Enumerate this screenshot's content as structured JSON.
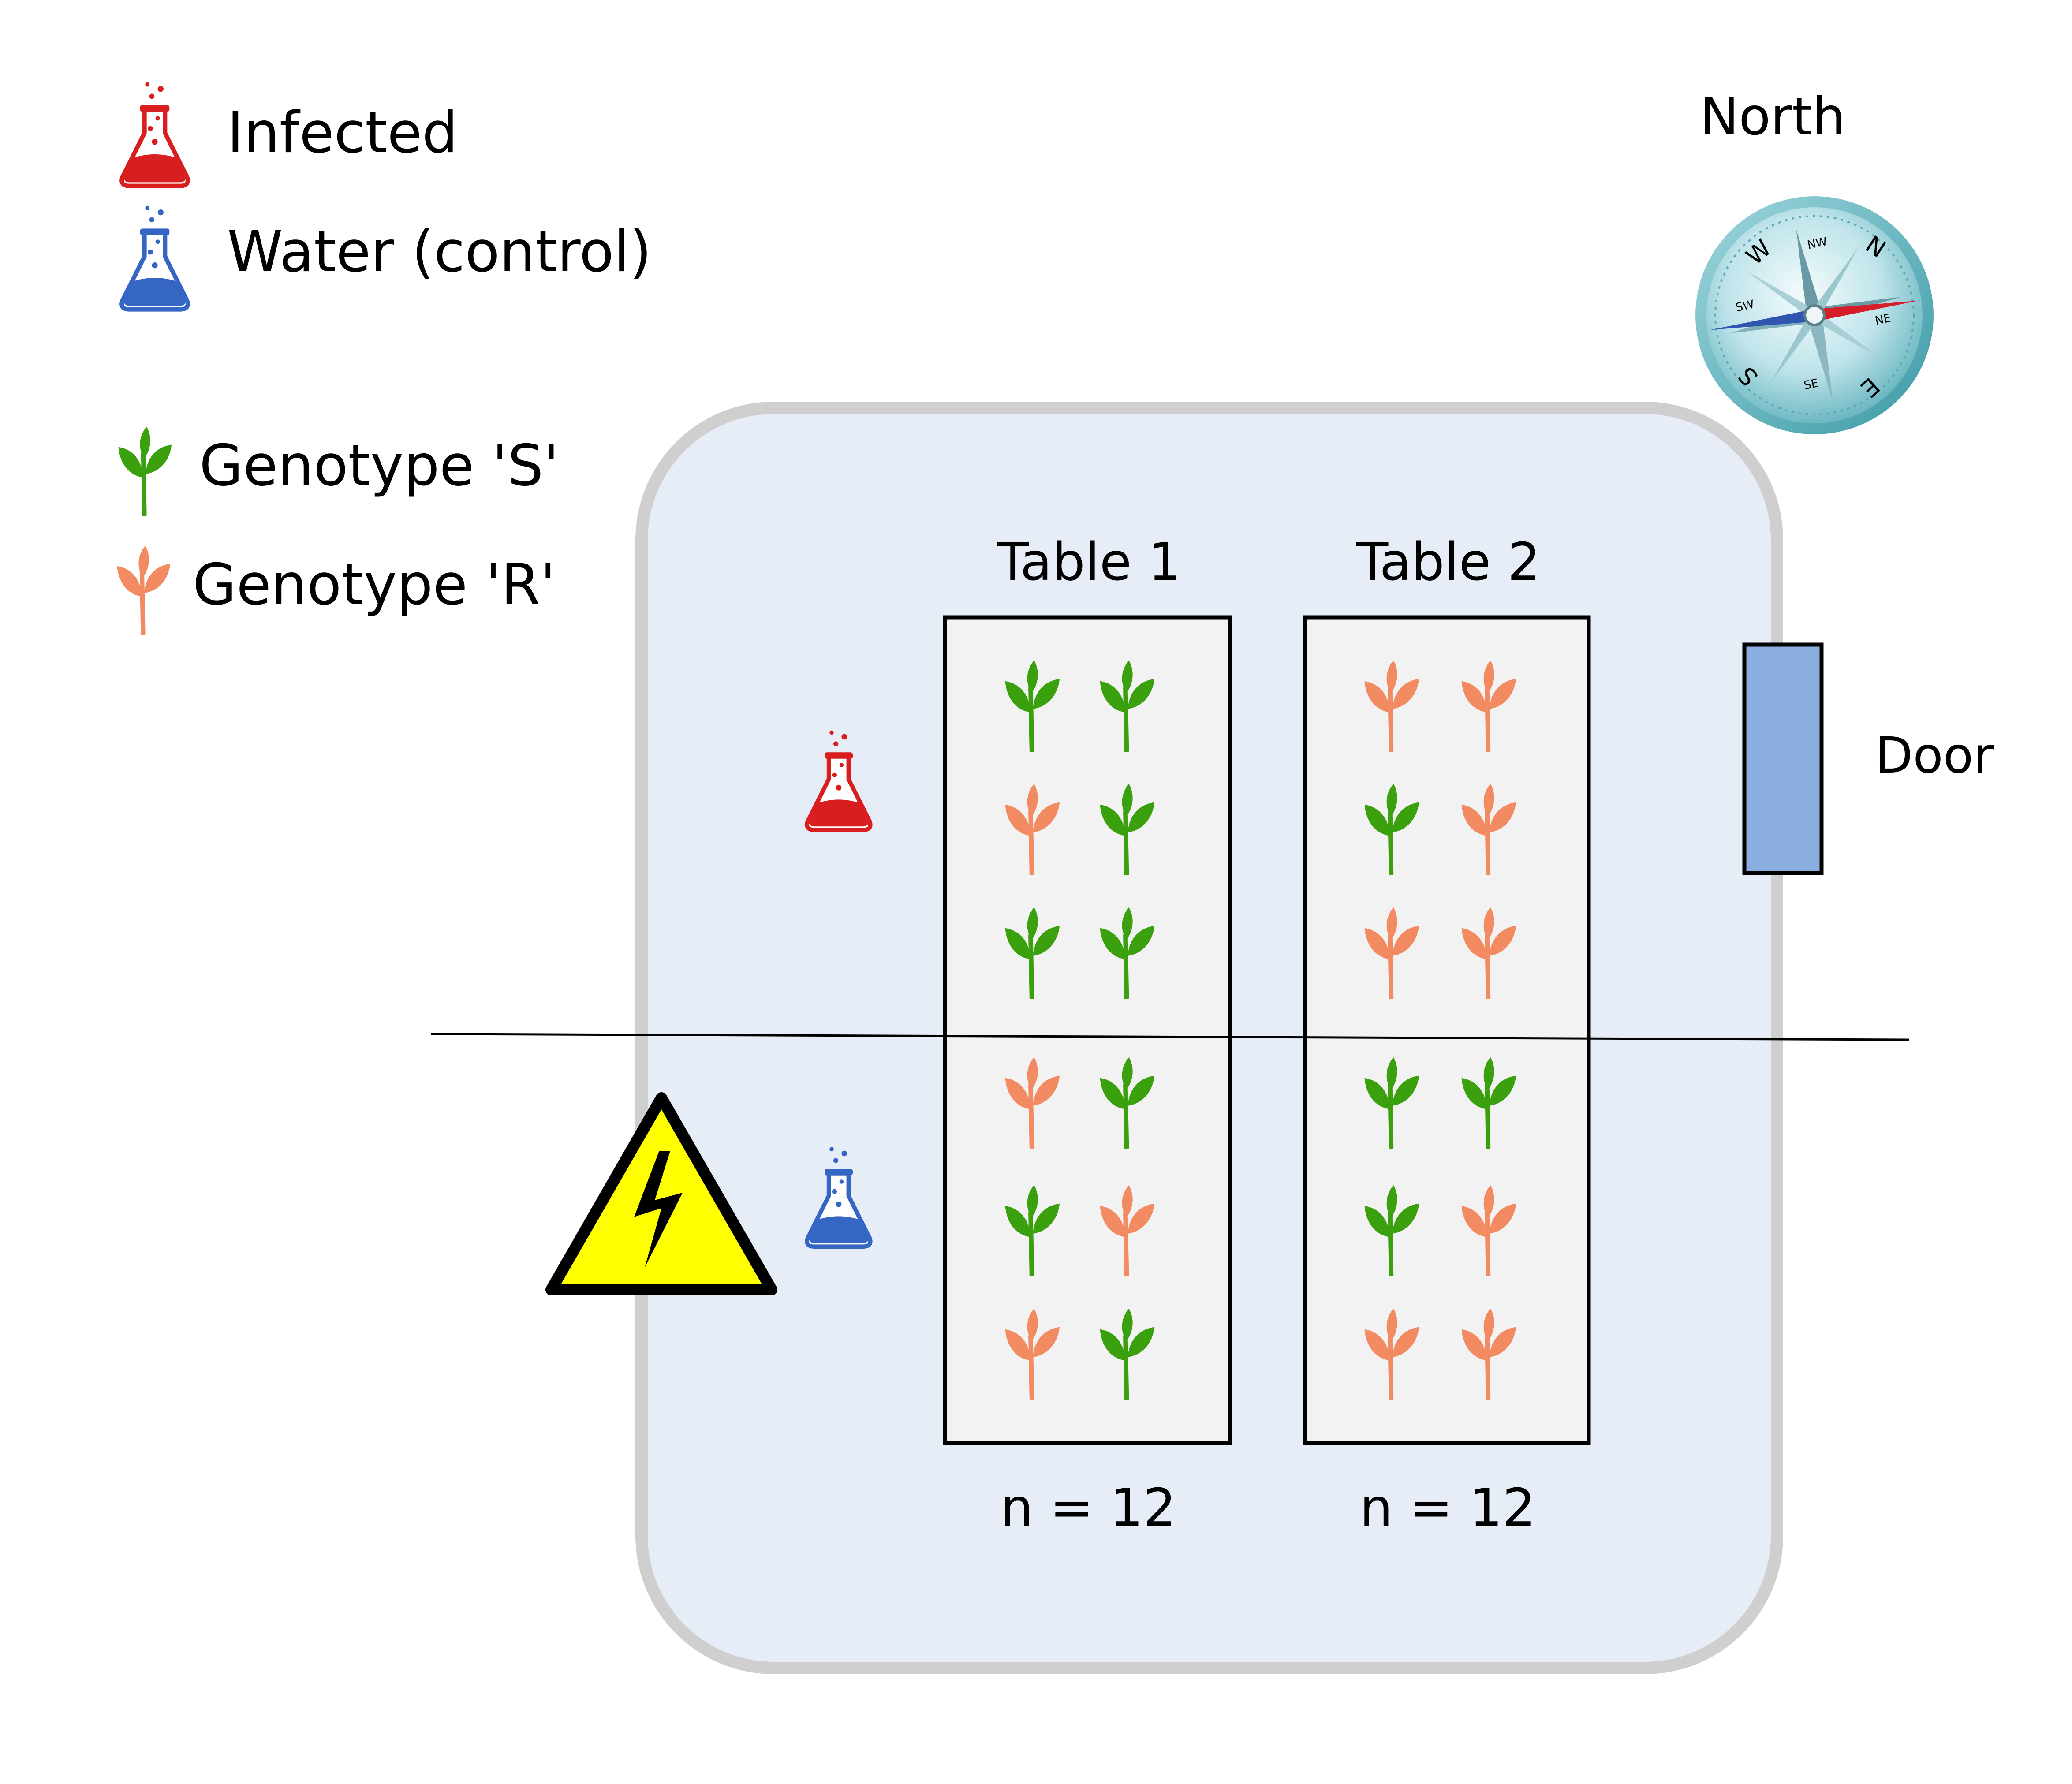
{
  "legend": {
    "infected_label": "Infected",
    "water_label": "Water (control)",
    "genotype_s_label": "Genotype 'S'",
    "genotype_r_label": "Genotype 'R'"
  },
  "compass": {
    "north_label": "North",
    "cardinals": {
      "n": "N",
      "s": "S",
      "e": "E",
      "w": "W"
    },
    "intercardinals": {
      "nw": "NW",
      "ne": "NE",
      "sw": "SW",
      "se": "SE"
    }
  },
  "door_label": "Door",
  "tables": [
    {
      "label": "Table 1",
      "count_label": "n = 12",
      "infected_rows": [
        [
          "S",
          "S"
        ],
        [
          "R",
          "S"
        ],
        [
          "S",
          "S"
        ]
      ],
      "control_rows": [
        [
          "R",
          "S"
        ],
        [
          "S",
          "R"
        ],
        [
          "R",
          "S"
        ]
      ]
    },
    {
      "label": "Table 2",
      "count_label": "n = 12",
      "infected_rows": [
        [
          "R",
          "R"
        ],
        [
          "S",
          "R"
        ],
        [
          "R",
          "R"
        ]
      ],
      "control_rows": [
        [
          "S",
          "S"
        ],
        [
          "S",
          "R"
        ],
        [
          "R",
          "R"
        ]
      ]
    }
  ],
  "treatments": {
    "upper": "infected",
    "lower": "water"
  },
  "hazard": "electrical-hazard",
  "colors": {
    "genotype_s": "#3aa00e",
    "genotype_r": "#f28a62",
    "infected": "#d81e1e",
    "water": "#3566c4",
    "room_fill": "#e6edf7",
    "room_border": "#cfcfcf",
    "table_fill": "#f2f2f2",
    "door_fill": "#8aaee0",
    "hazard_fill": "#ffff00"
  }
}
